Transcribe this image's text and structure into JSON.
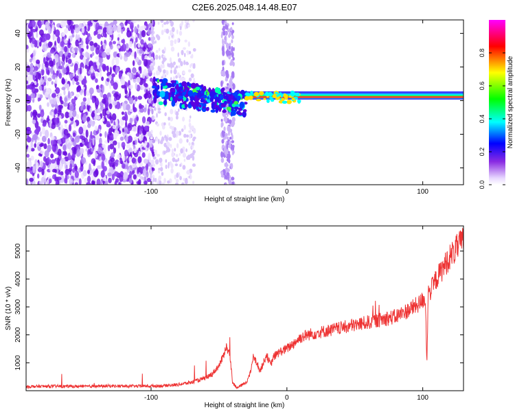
{
  "chart_data": [
    {
      "type": "heatmap",
      "title": "C2E6.2025.048.14.48.E07",
      "xlabel": "Height of straight line (km)",
      "ylabel": "Frequency (Hz)",
      "xlim": [
        -192,
        130
      ],
      "ylim": [
        -50,
        48
      ],
      "xticks": [
        -100,
        0,
        100
      ],
      "yticks": [
        -40,
        -20,
        0,
        20,
        40
      ],
      "colorbar": {
        "label": "Normalized spectral amplitude",
        "range": [
          0,
          1
        ],
        "ticks": [
          "0.0",
          "0.2",
          "0.4",
          "0.6",
          "0.8"
        ],
        "colormap": [
          "#ffffff",
          "#8a2be2",
          "#0000ff",
          "#00ffff",
          "#00ff00",
          "#ffff00",
          "#ff0000",
          "#ff00ff"
        ]
      },
      "features": {
        "noise_region_x": [
          -192,
          -98
        ],
        "ridge_x_start": -98,
        "ridge_frequency_hz": 2,
        "strong_ridge_x_start": -30
      }
    },
    {
      "type": "line",
      "xlabel": "Height of straight line (km)",
      "ylabel": "SNR (10 * v/v)",
      "xlim": [
        -192,
        130
      ],
      "ylim": [
        0,
        5900
      ],
      "xticks": [
        -100,
        0,
        100
      ],
      "yticks": [
        1000,
        2000,
        3000,
        4000,
        5000
      ],
      "color": "#ee3333",
      "series": [
        {
          "x": [
            -192,
            -170,
            -150,
            -130,
            -110,
            -90,
            -80,
            -70,
            -60,
            -55,
            -50,
            -47,
            -45,
            -42,
            -40,
            -37,
            -35,
            -30,
            -27,
            -25,
            -22,
            -20,
            -18,
            -15,
            -12,
            -10,
            -5,
            0,
            5,
            10,
            15,
            20,
            30,
            40,
            50,
            60,
            70,
            80,
            90,
            97,
            100,
            102,
            103,
            104,
            106,
            110,
            115,
            120,
            125,
            130
          ],
          "y": [
            150,
            160,
            150,
            170,
            160,
            180,
            220,
            300,
            450,
            600,
            900,
            1200,
            1600,
            1300,
            300,
            100,
            150,
            300,
            600,
            1200,
            1000,
            700,
            900,
            1300,
            900,
            1200,
            1400,
            1500,
            1700,
            1900,
            2000,
            2050,
            2150,
            2250,
            2350,
            2450,
            2550,
            2650,
            2900,
            3100,
            3250,
            3300,
            900,
            3500,
            3600,
            4000,
            4400,
            4800,
            5100,
            5400
          ]
        }
      ]
    }
  ]
}
